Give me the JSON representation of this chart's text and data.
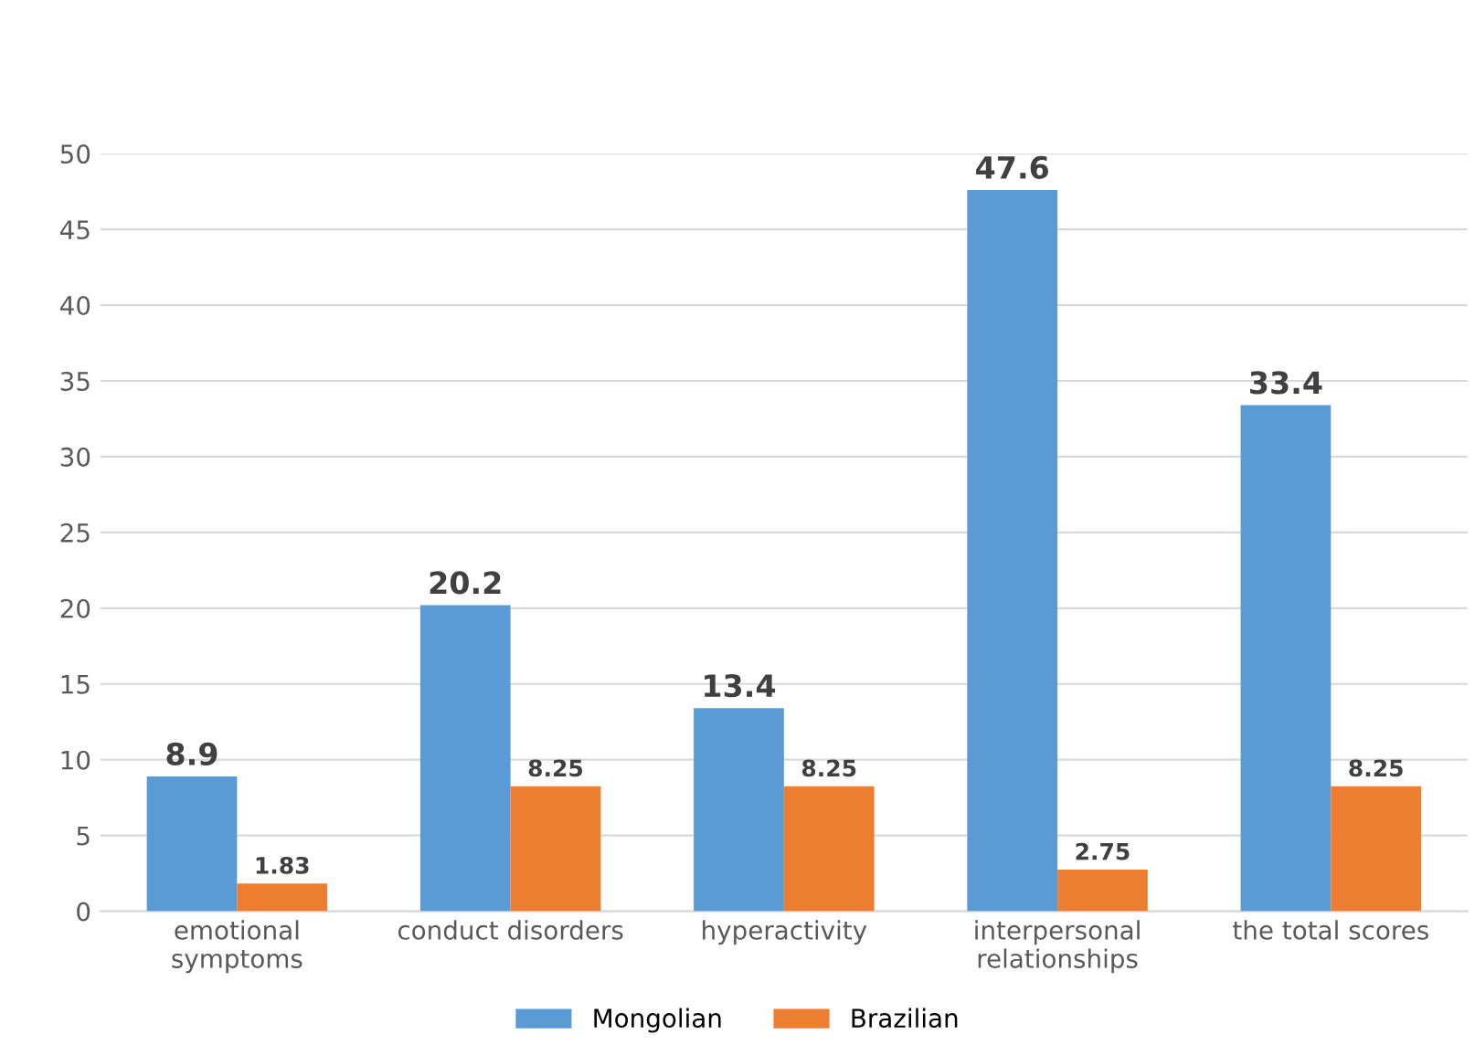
{
  "chart_data": {
    "type": "bar",
    "categories": [
      "emotional\nsymptoms",
      "conduct disorders",
      "hyperactivity",
      "interpersonal\nrelationships",
      "the total scores"
    ],
    "series": [
      {
        "name": "Mongolian",
        "color": "#5b9bd5",
        "values": [
          8.9,
          20.2,
          13.4,
          47.6,
          33.4
        ]
      },
      {
        "name": "Brazilian",
        "color": "#ed7d31",
        "values": [
          1.83,
          8.25,
          8.25,
          2.75,
          8.25
        ]
      }
    ],
    "ylim": [
      0,
      50
    ],
    "yticks": [
      0,
      5,
      10,
      15,
      20,
      25,
      30,
      35,
      40,
      45,
      50
    ],
    "grid": "y",
    "legend": "bottom",
    "data_labels": true
  }
}
